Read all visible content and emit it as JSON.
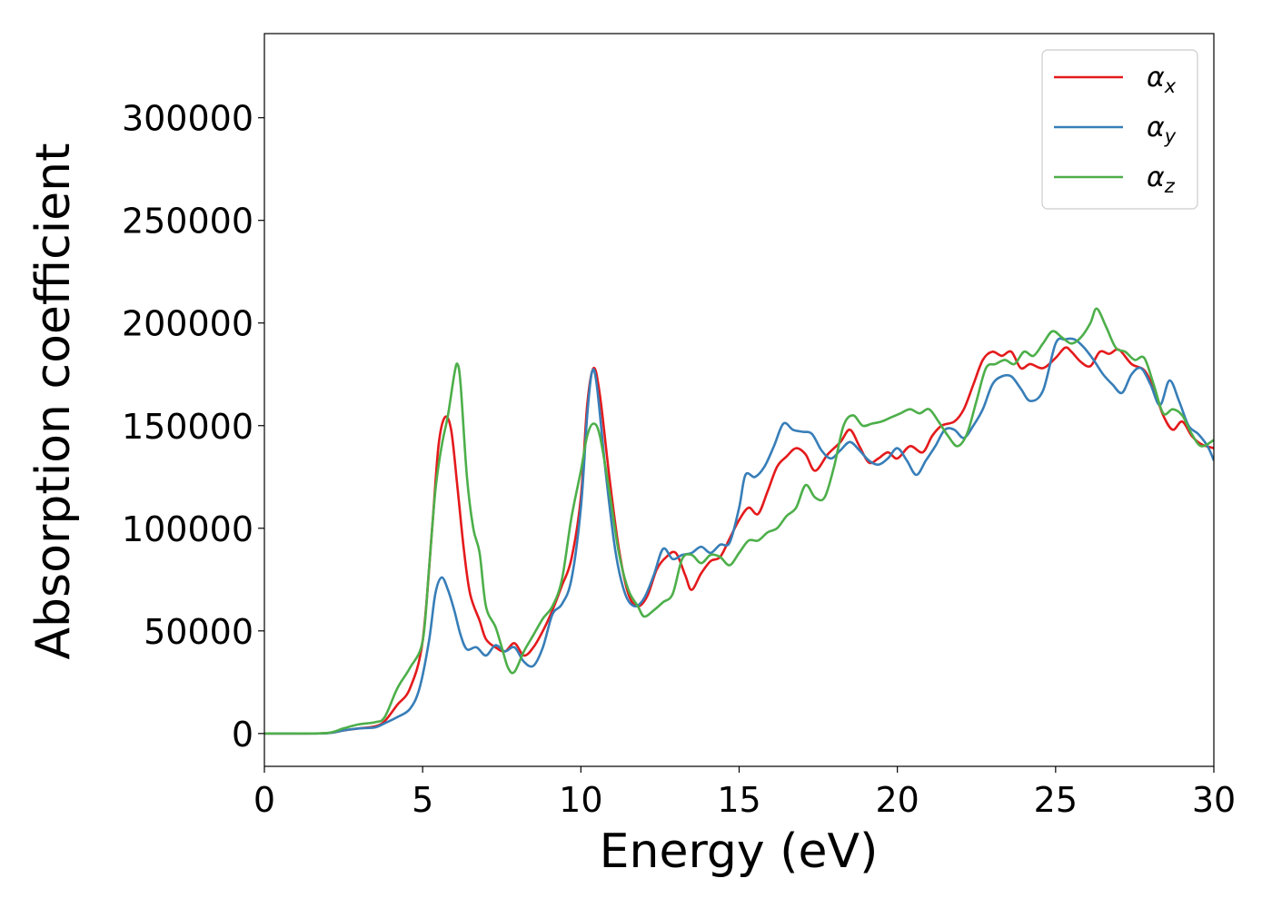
{
  "chart_data": {
    "type": "line",
    "xlabel": "Energy (eV)",
    "ylabel": "Absorption coefficient",
    "xlim": [
      0,
      30
    ],
    "ylim": [
      -16000,
      341000
    ],
    "x_ticks": [
      "0",
      "5",
      "10",
      "15",
      "20",
      "25",
      "30"
    ],
    "y_ticks": [
      "0",
      "50000",
      "100000",
      "150000",
      "200000",
      "250000",
      "300000"
    ],
    "grid": false,
    "legend": {
      "placement": "top-right",
      "entries": [
        {
          "symbol": "α",
          "subscript": "x"
        },
        {
          "symbol": "α",
          "subscript": "y"
        },
        {
          "symbol": "α",
          "subscript": "z"
        }
      ]
    },
    "series": [
      {
        "color": "#e41a1c",
        "points": [
          [
            0,
            0
          ],
          [
            1,
            0
          ],
          [
            2,
            200
          ],
          [
            2.5,
            1500
          ],
          [
            3,
            2500
          ],
          [
            3.5,
            3500
          ],
          [
            3.8,
            6000
          ],
          [
            4.2,
            14000
          ],
          [
            4.6,
            22000
          ],
          [
            5.0,
            45000
          ],
          [
            5.3,
            100000
          ],
          [
            5.5,
            140000
          ],
          [
            5.7,
            154000
          ],
          [
            5.9,
            148000
          ],
          [
            6.1,
            120000
          ],
          [
            6.3,
            90000
          ],
          [
            6.5,
            68000
          ],
          [
            6.8,
            55000
          ],
          [
            7.0,
            46000
          ],
          [
            7.3,
            42000
          ],
          [
            7.6,
            40000
          ],
          [
            7.9,
            44000
          ],
          [
            8.2,
            38000
          ],
          [
            8.5,
            42000
          ],
          [
            8.8,
            50000
          ],
          [
            9.1,
            60000
          ],
          [
            9.4,
            72000
          ],
          [
            9.7,
            85000
          ],
          [
            10.0,
            115000
          ],
          [
            10.2,
            160000
          ],
          [
            10.4,
            178000
          ],
          [
            10.6,
            165000
          ],
          [
            10.9,
            125000
          ],
          [
            11.2,
            90000
          ],
          [
            11.5,
            68000
          ],
          [
            11.8,
            62000
          ],
          [
            12.1,
            67000
          ],
          [
            12.4,
            80000
          ],
          [
            12.7,
            86000
          ],
          [
            13.0,
            88000
          ],
          [
            13.3,
            77000
          ],
          [
            13.5,
            70000
          ],
          [
            13.8,
            78000
          ],
          [
            14.1,
            84000
          ],
          [
            14.4,
            86000
          ],
          [
            14.7,
            95000
          ],
          [
            15.0,
            104000
          ],
          [
            15.3,
            110000
          ],
          [
            15.6,
            107000
          ],
          [
            15.9,
            118000
          ],
          [
            16.2,
            130000
          ],
          [
            16.5,
            135000
          ],
          [
            16.8,
            139000
          ],
          [
            17.1,
            136000
          ],
          [
            17.4,
            128000
          ],
          [
            17.8,
            136000
          ],
          [
            18.2,
            142000
          ],
          [
            18.5,
            148000
          ],
          [
            18.8,
            140000
          ],
          [
            19.1,
            132000
          ],
          [
            19.4,
            134000
          ],
          [
            19.7,
            137000
          ],
          [
            20.0,
            134000
          ],
          [
            20.4,
            140000
          ],
          [
            20.8,
            137000
          ],
          [
            21.1,
            145000
          ],
          [
            21.4,
            150000
          ],
          [
            21.8,
            152000
          ],
          [
            22.1,
            158000
          ],
          [
            22.4,
            170000
          ],
          [
            22.7,
            182000
          ],
          [
            23.0,
            186000
          ],
          [
            23.3,
            184000
          ],
          [
            23.6,
            186000
          ],
          [
            23.9,
            178000
          ],
          [
            24.2,
            180000
          ],
          [
            24.6,
            178000
          ],
          [
            25.0,
            183000
          ],
          [
            25.3,
            188000
          ],
          [
            25.5,
            186000
          ],
          [
            25.8,
            181000
          ],
          [
            26.1,
            179000
          ],
          [
            26.4,
            186000
          ],
          [
            26.7,
            185000
          ],
          [
            27.0,
            187000
          ],
          [
            27.4,
            180000
          ],
          [
            27.8,
            177000
          ],
          [
            28.1,
            168000
          ],
          [
            28.4,
            155000
          ],
          [
            28.7,
            148000
          ],
          [
            29.0,
            152000
          ],
          [
            29.3,
            145000
          ],
          [
            29.6,
            141000
          ],
          [
            30.0,
            139000
          ]
        ]
      },
      {
        "color": "#377eb8",
        "points": [
          [
            0,
            0
          ],
          [
            1,
            0
          ],
          [
            2,
            150
          ],
          [
            2.5,
            1500
          ],
          [
            3,
            2500
          ],
          [
            3.5,
            3000
          ],
          [
            3.8,
            5000
          ],
          [
            4.2,
            8000
          ],
          [
            4.6,
            12000
          ],
          [
            4.9,
            22000
          ],
          [
            5.2,
            45000
          ],
          [
            5.4,
            68000
          ],
          [
            5.6,
            76000
          ],
          [
            5.8,
            70000
          ],
          [
            6.0,
            60000
          ],
          [
            6.2,
            48000
          ],
          [
            6.4,
            41000
          ],
          [
            6.7,
            42000
          ],
          [
            7.0,
            38000
          ],
          [
            7.3,
            43000
          ],
          [
            7.6,
            40000
          ],
          [
            7.9,
            42000
          ],
          [
            8.2,
            35000
          ],
          [
            8.5,
            33000
          ],
          [
            8.8,
            42000
          ],
          [
            9.1,
            58000
          ],
          [
            9.4,
            63000
          ],
          [
            9.7,
            75000
          ],
          [
            10.0,
            110000
          ],
          [
            10.2,
            155000
          ],
          [
            10.35,
            176000
          ],
          [
            10.5,
            170000
          ],
          [
            10.8,
            125000
          ],
          [
            11.1,
            88000
          ],
          [
            11.4,
            68000
          ],
          [
            11.7,
            62000
          ],
          [
            12.0,
            66000
          ],
          [
            12.3,
            77000
          ],
          [
            12.6,
            90000
          ],
          [
            12.9,
            85000
          ],
          [
            13.2,
            87000
          ],
          [
            13.5,
            88000
          ],
          [
            13.8,
            91000
          ],
          [
            14.1,
            88000
          ],
          [
            14.4,
            92000
          ],
          [
            14.7,
            93000
          ],
          [
            15.0,
            110000
          ],
          [
            15.2,
            126000
          ],
          [
            15.5,
            125000
          ],
          [
            15.8,
            130000
          ],
          [
            16.1,
            140000
          ],
          [
            16.4,
            151000
          ],
          [
            16.7,
            148000
          ],
          [
            17.0,
            147000
          ],
          [
            17.3,
            146000
          ],
          [
            17.6,
            138000
          ],
          [
            17.9,
            134000
          ],
          [
            18.2,
            138000
          ],
          [
            18.5,
            142000
          ],
          [
            18.8,
            138000
          ],
          [
            19.1,
            133000
          ],
          [
            19.4,
            131000
          ],
          [
            19.7,
            134000
          ],
          [
            20.0,
            139000
          ],
          [
            20.3,
            133000
          ],
          [
            20.6,
            126000
          ],
          [
            20.9,
            133000
          ],
          [
            21.2,
            140000
          ],
          [
            21.5,
            148000
          ],
          [
            21.8,
            148000
          ],
          [
            22.1,
            144000
          ],
          [
            22.4,
            150000
          ],
          [
            22.7,
            158000
          ],
          [
            23.0,
            170000
          ],
          [
            23.3,
            174000
          ],
          [
            23.6,
            174000
          ],
          [
            23.9,
            168000
          ],
          [
            24.2,
            162000
          ],
          [
            24.6,
            167000
          ],
          [
            25.0,
            190000
          ],
          [
            25.3,
            192000
          ],
          [
            25.6,
            192000
          ],
          [
            25.9,
            188000
          ],
          [
            26.2,
            182000
          ],
          [
            26.5,
            175000
          ],
          [
            26.8,
            170000
          ],
          [
            27.1,
            166000
          ],
          [
            27.4,
            175000
          ],
          [
            27.7,
            178000
          ],
          [
            28.0,
            170000
          ],
          [
            28.3,
            160000
          ],
          [
            28.6,
            172000
          ],
          [
            28.9,
            162000
          ],
          [
            29.2,
            150000
          ],
          [
            29.5,
            146000
          ],
          [
            29.8,
            140000
          ],
          [
            30.0,
            133000
          ]
        ]
      },
      {
        "color": "#4daf4a",
        "points": [
          [
            0,
            0
          ],
          [
            1,
            0
          ],
          [
            2,
            300
          ],
          [
            2.5,
            2500
          ],
          [
            3,
            4500
          ],
          [
            3.5,
            5500
          ],
          [
            3.8,
            8000
          ],
          [
            4.2,
            22000
          ],
          [
            4.6,
            32000
          ],
          [
            5.0,
            45000
          ],
          [
            5.2,
            80000
          ],
          [
            5.4,
            118000
          ],
          [
            5.6,
            140000
          ],
          [
            5.8,
            155000
          ],
          [
            6.0,
            175000
          ],
          [
            6.1,
            180000
          ],
          [
            6.2,
            170000
          ],
          [
            6.4,
            125000
          ],
          [
            6.6,
            100000
          ],
          [
            6.8,
            88000
          ],
          [
            7.0,
            62000
          ],
          [
            7.3,
            52000
          ],
          [
            7.5,
            42000
          ],
          [
            7.7,
            32000
          ],
          [
            7.9,
            30000
          ],
          [
            8.2,
            40000
          ],
          [
            8.5,
            48000
          ],
          [
            8.8,
            56000
          ],
          [
            9.1,
            62000
          ],
          [
            9.4,
            75000
          ],
          [
            9.7,
            105000
          ],
          [
            10.0,
            128000
          ],
          [
            10.2,
            145000
          ],
          [
            10.4,
            151000
          ],
          [
            10.6,
            145000
          ],
          [
            10.9,
            118000
          ],
          [
            11.2,
            88000
          ],
          [
            11.5,
            70000
          ],
          [
            11.8,
            62000
          ],
          [
            12.0,
            57000
          ],
          [
            12.3,
            60000
          ],
          [
            12.6,
            64000
          ],
          [
            12.9,
            68000
          ],
          [
            13.2,
            85000
          ],
          [
            13.5,
            87000
          ],
          [
            13.8,
            83000
          ],
          [
            14.1,
            87000
          ],
          [
            14.4,
            86000
          ],
          [
            14.7,
            82000
          ],
          [
            15.0,
            88000
          ],
          [
            15.3,
            94000
          ],
          [
            15.6,
            94000
          ],
          [
            15.9,
            98000
          ],
          [
            16.2,
            100000
          ],
          [
            16.5,
            106000
          ],
          [
            16.8,
            110000
          ],
          [
            17.1,
            121000
          ],
          [
            17.4,
            115000
          ],
          [
            17.7,
            115000
          ],
          [
            18.0,
            130000
          ],
          [
            18.3,
            150000
          ],
          [
            18.6,
            155000
          ],
          [
            18.9,
            150000
          ],
          [
            19.2,
            151000
          ],
          [
            19.5,
            152000
          ],
          [
            19.8,
            154000
          ],
          [
            20.1,
            156000
          ],
          [
            20.4,
            158000
          ],
          [
            20.7,
            156000
          ],
          [
            21.0,
            158000
          ],
          [
            21.3,
            152000
          ],
          [
            21.6,
            145000
          ],
          [
            21.9,
            140000
          ],
          [
            22.2,
            146000
          ],
          [
            22.5,
            162000
          ],
          [
            22.8,
            178000
          ],
          [
            23.1,
            180000
          ],
          [
            23.4,
            182000
          ],
          [
            23.7,
            180000
          ],
          [
            24.0,
            186000
          ],
          [
            24.3,
            184000
          ],
          [
            24.6,
            190000
          ],
          [
            24.9,
            196000
          ],
          [
            25.2,
            193000
          ],
          [
            25.5,
            190000
          ],
          [
            25.8,
            193000
          ],
          [
            26.1,
            200000
          ],
          [
            26.3,
            207000
          ],
          [
            26.6,
            198000
          ],
          [
            26.9,
            188000
          ],
          [
            27.2,
            186000
          ],
          [
            27.5,
            182000
          ],
          [
            27.8,
            183000
          ],
          [
            28.1,
            170000
          ],
          [
            28.4,
            156000
          ],
          [
            28.7,
            158000
          ],
          [
            29.0,
            155000
          ],
          [
            29.3,
            146000
          ],
          [
            29.6,
            140000
          ],
          [
            30.0,
            143000
          ]
        ]
      }
    ]
  }
}
